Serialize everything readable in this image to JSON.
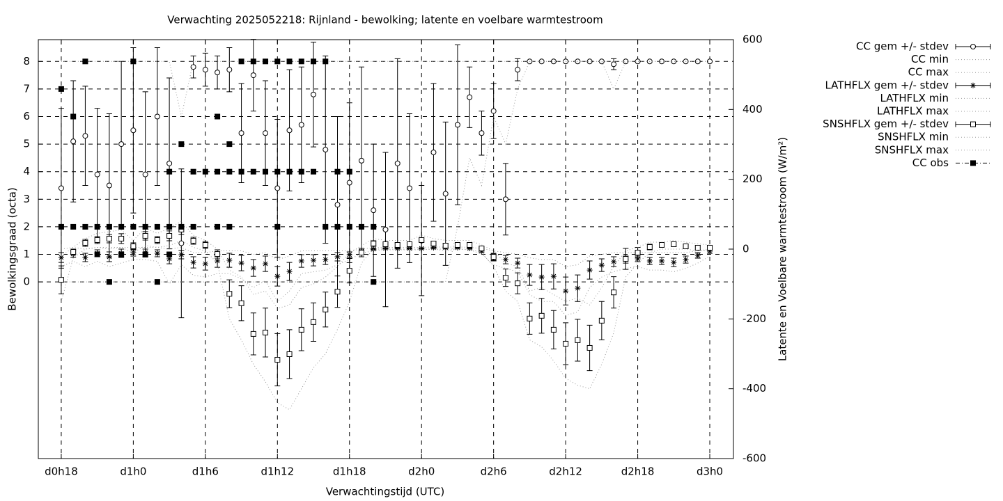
{
  "chart_data": {
    "type": "errorbar",
    "title": "Verwachting 2025052218: Rijnland - bewolking; latente en voelbare warmtestroom",
    "xlabel": "Verwachtingstijd (UTC)",
    "ylabel": "Bewolkingsgraad (octa)",
    "y2label": "Latente en Voelbare warmtestroom (W/m²)",
    "grid": true,
    "legend": "outside-top-right",
    "xlim": [
      16.09,
      73.97
    ],
    "xticks": [
      {
        "value": 18,
        "label": "d0h18"
      },
      {
        "value": 24,
        "label": "d1h0"
      },
      {
        "value": 30,
        "label": "d1h6"
      },
      {
        "value": 36,
        "label": "d1h12"
      },
      {
        "value": 42,
        "label": "d1h18"
      },
      {
        "value": 48,
        "label": "d2h0"
      },
      {
        "value": 54,
        "label": "d2h6"
      },
      {
        "value": 60,
        "label": "d2h12"
      },
      {
        "value": 66,
        "label": "d2h18"
      },
      {
        "value": 72,
        "label": "d3h0"
      }
    ],
    "ylim": [
      -6.41,
      8.79
    ],
    "yticks": [
      0,
      1,
      2,
      3,
      4,
      5,
      6,
      7,
      8
    ],
    "y2lim": [
      -600,
      600
    ],
    "y2ticks": [
      -600,
      -400,
      -200,
      0,
      200,
      400,
      600
    ],
    "x": [
      18,
      19,
      20,
      21,
      22,
      23,
      24,
      25,
      26,
      27,
      28,
      29,
      30,
      31,
      32,
      33,
      34,
      35,
      36,
      37,
      38,
      39,
      40,
      41,
      42,
      43,
      44,
      45,
      46,
      47,
      48,
      49,
      50,
      51,
      52,
      53,
      54,
      55,
      56,
      57,
      58,
      59,
      60,
      61,
      62,
      63,
      64,
      65,
      66,
      67,
      68,
      69,
      70,
      71,
      72
    ],
    "series": [
      {
        "name": "CC gem +/- stdev",
        "style": "errorbar",
        "marker": "circle",
        "color": "#000000",
        "values": [
          3.4,
          5.1,
          5.3,
          3.9,
          3.5,
          5.0,
          5.5,
          3.9,
          6.0,
          4.3,
          1.4,
          7.8,
          7.7,
          7.6,
          7.7,
          5.4,
          7.5,
          5.4,
          3.4,
          5.5,
          5.7,
          6.8,
          4.8,
          2.8,
          3.6,
          4.4,
          2.6,
          1.9,
          4.3,
          3.4,
          1.5,
          4.7,
          3.2,
          5.7,
          6.7,
          5.4,
          6.2,
          3.0,
          7.7,
          8,
          8,
          8,
          8,
          8,
          8,
          8,
          7.9,
          8,
          8,
          8,
          8,
          8,
          8,
          8,
          8
        ],
        "errors": [
          2.9,
          2.2,
          1.8,
          2.4,
          2.6,
          3.0,
          3.0,
          3.0,
          2.5,
          3.1,
          2.7,
          0.4,
          0.6,
          0.6,
          0.8,
          1.8,
          1.3,
          1.9,
          2.5,
          2.2,
          2.1,
          1.9,
          3.4,
          3.2,
          2.9,
          3.4,
          2.4,
          2.8,
          3.8,
          2.7,
          2.0,
          2.5,
          2.6,
          2.9,
          1.1,
          0.8,
          1.0,
          1.3,
          0.4,
          0,
          0,
          0,
          0,
          0,
          0,
          0,
          0.2,
          0,
          0,
          0,
          0,
          0,
          0,
          0,
          0
        ]
      },
      {
        "name": "CC min",
        "style": "dotted",
        "color": "#999999",
        "values": [
          0,
          0,
          0,
          0,
          0,
          0,
          0,
          0,
          0,
          0,
          0,
          0,
          0,
          0,
          0,
          0,
          0,
          0,
          0,
          0,
          0,
          0,
          0,
          0,
          0,
          0,
          0,
          0,
          0,
          0,
          0,
          0,
          0,
          2,
          4.5,
          3.5,
          6,
          5,
          7,
          8,
          8,
          8,
          8,
          8,
          8,
          8,
          7,
          8,
          8,
          8,
          8,
          8,
          8,
          8,
          8
        ]
      },
      {
        "name": "CC max",
        "style": "dotted",
        "color": "#999999",
        "values": [
          8,
          8,
          8,
          8,
          8,
          8,
          8,
          8,
          8,
          8,
          6,
          8,
          8,
          8,
          8,
          8,
          8,
          8,
          8,
          8,
          8,
          8,
          8,
          8,
          8,
          8,
          8,
          8,
          8,
          8,
          8,
          8,
          8,
          8,
          8,
          8,
          8,
          8,
          8,
          8,
          8,
          8,
          8,
          8,
          8,
          8,
          8,
          8,
          8,
          8,
          8,
          8,
          8,
          8,
          8
        ]
      },
      {
        "name": "LATHFLX gem +/- stdev",
        "style": "errorbar",
        "marker": "star",
        "axis": "y2",
        "color": "#000000",
        "values": [
          -24,
          -14,
          -24,
          -12,
          -22,
          -12,
          -10,
          -10,
          -12,
          -28,
          -16,
          -38,
          -42,
          -34,
          -32,
          -40,
          -54,
          -42,
          -78,
          -64,
          -34,
          -32,
          -30,
          -22,
          -16,
          -6,
          0,
          2,
          2,
          2,
          2,
          4,
          4,
          4,
          2,
          -6,
          -24,
          -30,
          -40,
          -74,
          -80,
          -78,
          -120,
          -112,
          -60,
          -46,
          -36,
          -30,
          -28,
          -34,
          -34,
          -38,
          -30,
          -18,
          -6
        ],
        "errors": [
          14,
          10,
          12,
          10,
          14,
          12,
          10,
          10,
          10,
          14,
          12,
          16,
          18,
          18,
          20,
          22,
          24,
          22,
          28,
          26,
          18,
          16,
          14,
          12,
          8,
          4,
          2,
          2,
          2,
          2,
          2,
          2,
          2,
          2,
          2,
          4,
          10,
          12,
          14,
          30,
          36,
          36,
          40,
          38,
          26,
          18,
          14,
          10,
          8,
          10,
          10,
          12,
          10,
          8,
          6
        ]
      },
      {
        "name": "LATHFLX min",
        "style": "dotted",
        "axis": "y2",
        "color": "#999999",
        "values": [
          -50,
          -35,
          -50,
          -35,
          -50,
          -40,
          -30,
          -30,
          -35,
          -100,
          -45,
          -75,
          -80,
          -70,
          -70,
          -85,
          -110,
          -90,
          -150,
          -120,
          -70,
          -65,
          -60,
          -45,
          -30,
          -12,
          -4,
          -2,
          -2,
          -2,
          -2,
          0,
          0,
          0,
          -2,
          -14,
          -45,
          -55,
          -65,
          -130,
          -150,
          -150,
          -190,
          -180,
          -110,
          -80,
          -65,
          -55,
          -50,
          -60,
          -60,
          -65,
          -55,
          -40,
          -20
        ]
      },
      {
        "name": "LATHFLX max",
        "style": "dotted",
        "axis": "y2",
        "color": "#999999",
        "values": [
          0,
          5,
          0,
          5,
          0,
          5,
          5,
          5,
          5,
          0,
          5,
          -10,
          -10,
          -5,
          -5,
          -5,
          -15,
          -10,
          -30,
          -20,
          -5,
          -5,
          -5,
          -5,
          -5,
          0,
          4,
          5,
          5,
          5,
          5,
          6,
          6,
          6,
          5,
          2,
          -5,
          -10,
          -15,
          -25,
          -30,
          -30,
          -50,
          -45,
          -20,
          -15,
          -10,
          -10,
          -10,
          -10,
          -10,
          -10,
          -10,
          -5,
          0
        ]
      },
      {
        "name": "SNSHFLX gem +/- stdev",
        "style": "errorbar",
        "marker": "square",
        "axis": "y2",
        "color": "#000000",
        "values": [
          -88,
          -8,
          18,
          26,
          30,
          30,
          8,
          38,
          26,
          38,
          56,
          24,
          12,
          -14,
          -128,
          -155,
          -243,
          -239,
          -317,
          -301,
          -231,
          -209,
          -173,
          -122,
          -62,
          -10,
          16,
          14,
          12,
          14,
          26,
          16,
          10,
          12,
          12,
          2,
          -22,
          -82,
          -98,
          -199,
          -191,
          -231,
          -271,
          -261,
          -283,
          -205,
          -124,
          -28,
          -10,
          6,
          12,
          14,
          8,
          4,
          4
        ],
        "errors": [
          40,
          8,
          10,
          10,
          12,
          14,
          10,
          12,
          10,
          14,
          14,
          10,
          10,
          12,
          40,
          50,
          60,
          70,
          75,
          70,
          60,
          55,
          50,
          45,
          35,
          12,
          8,
          6,
          6,
          6,
          6,
          6,
          6,
          6,
          6,
          4,
          10,
          25,
          30,
          45,
          50,
          55,
          60,
          60,
          65,
          55,
          45,
          30,
          15,
          8,
          6,
          6,
          6,
          6,
          4
        ]
      },
      {
        "name": "SNSHFLX min",
        "style": "dotted",
        "axis": "y2",
        "color": "#999999",
        "values": [
          -150,
          -25,
          0,
          5,
          5,
          5,
          -10,
          10,
          5,
          10,
          25,
          5,
          -5,
          -40,
          -200,
          -260,
          -330,
          -380,
          -440,
          -460,
          -400,
          -340,
          -300,
          -230,
          -150,
          -40,
          0,
          0,
          0,
          0,
          0,
          0,
          -5,
          0,
          0,
          -10,
          -50,
          -120,
          -150,
          -260,
          -280,
          -320,
          -370,
          -390,
          -400,
          -330,
          -240,
          -80,
          -40,
          -10,
          0,
          0,
          0,
          -5,
          -5
        ]
      },
      {
        "name": "SNSHFLX max",
        "style": "dotted",
        "axis": "y2",
        "color": "#999999",
        "values": [
          -20,
          5,
          30,
          45,
          50,
          55,
          25,
          60,
          45,
          60,
          80,
          40,
          25,
          0,
          -60,
          -80,
          -130,
          -120,
          -170,
          -160,
          -110,
          -100,
          -80,
          -50,
          -10,
          10,
          30,
          25,
          25,
          25,
          40,
          30,
          25,
          25,
          25,
          12,
          -5,
          -40,
          -50,
          -120,
          -110,
          -130,
          -150,
          -140,
          -160,
          -110,
          -50,
          -5,
          5,
          20,
          20,
          25,
          20,
          15,
          12
        ]
      },
      {
        "name": "CC obs",
        "style": "points",
        "marker": "filled-square",
        "color": "#000000",
        "x": [
          18,
          18,
          19,
          19,
          20,
          20,
          21,
          21,
          22,
          22,
          23,
          23,
          24,
          24,
          25,
          25,
          26,
          26,
          27,
          27,
          27,
          28,
          28,
          29,
          29,
          30,
          31,
          31,
          31,
          32,
          32,
          32,
          33,
          33,
          34,
          34,
          35,
          35,
          36,
          36,
          36,
          37,
          37,
          38,
          38,
          39,
          39,
          40,
          40,
          41,
          41,
          42,
          42,
          43,
          44,
          44
        ],
        "values": [
          7,
          2,
          6,
          2,
          8,
          2,
          1,
          2,
          0,
          2,
          1,
          2,
          8,
          2,
          1,
          2,
          0,
          2,
          1,
          2,
          4,
          5,
          2,
          4,
          2,
          4,
          6,
          4,
          2,
          5,
          4,
          2,
          8,
          4,
          8,
          4,
          8,
          4,
          8,
          4,
          2,
          8,
          4,
          8,
          4,
          8,
          4,
          8,
          2,
          4,
          2,
          4,
          2,
          2,
          2,
          0
        ]
      }
    ]
  }
}
